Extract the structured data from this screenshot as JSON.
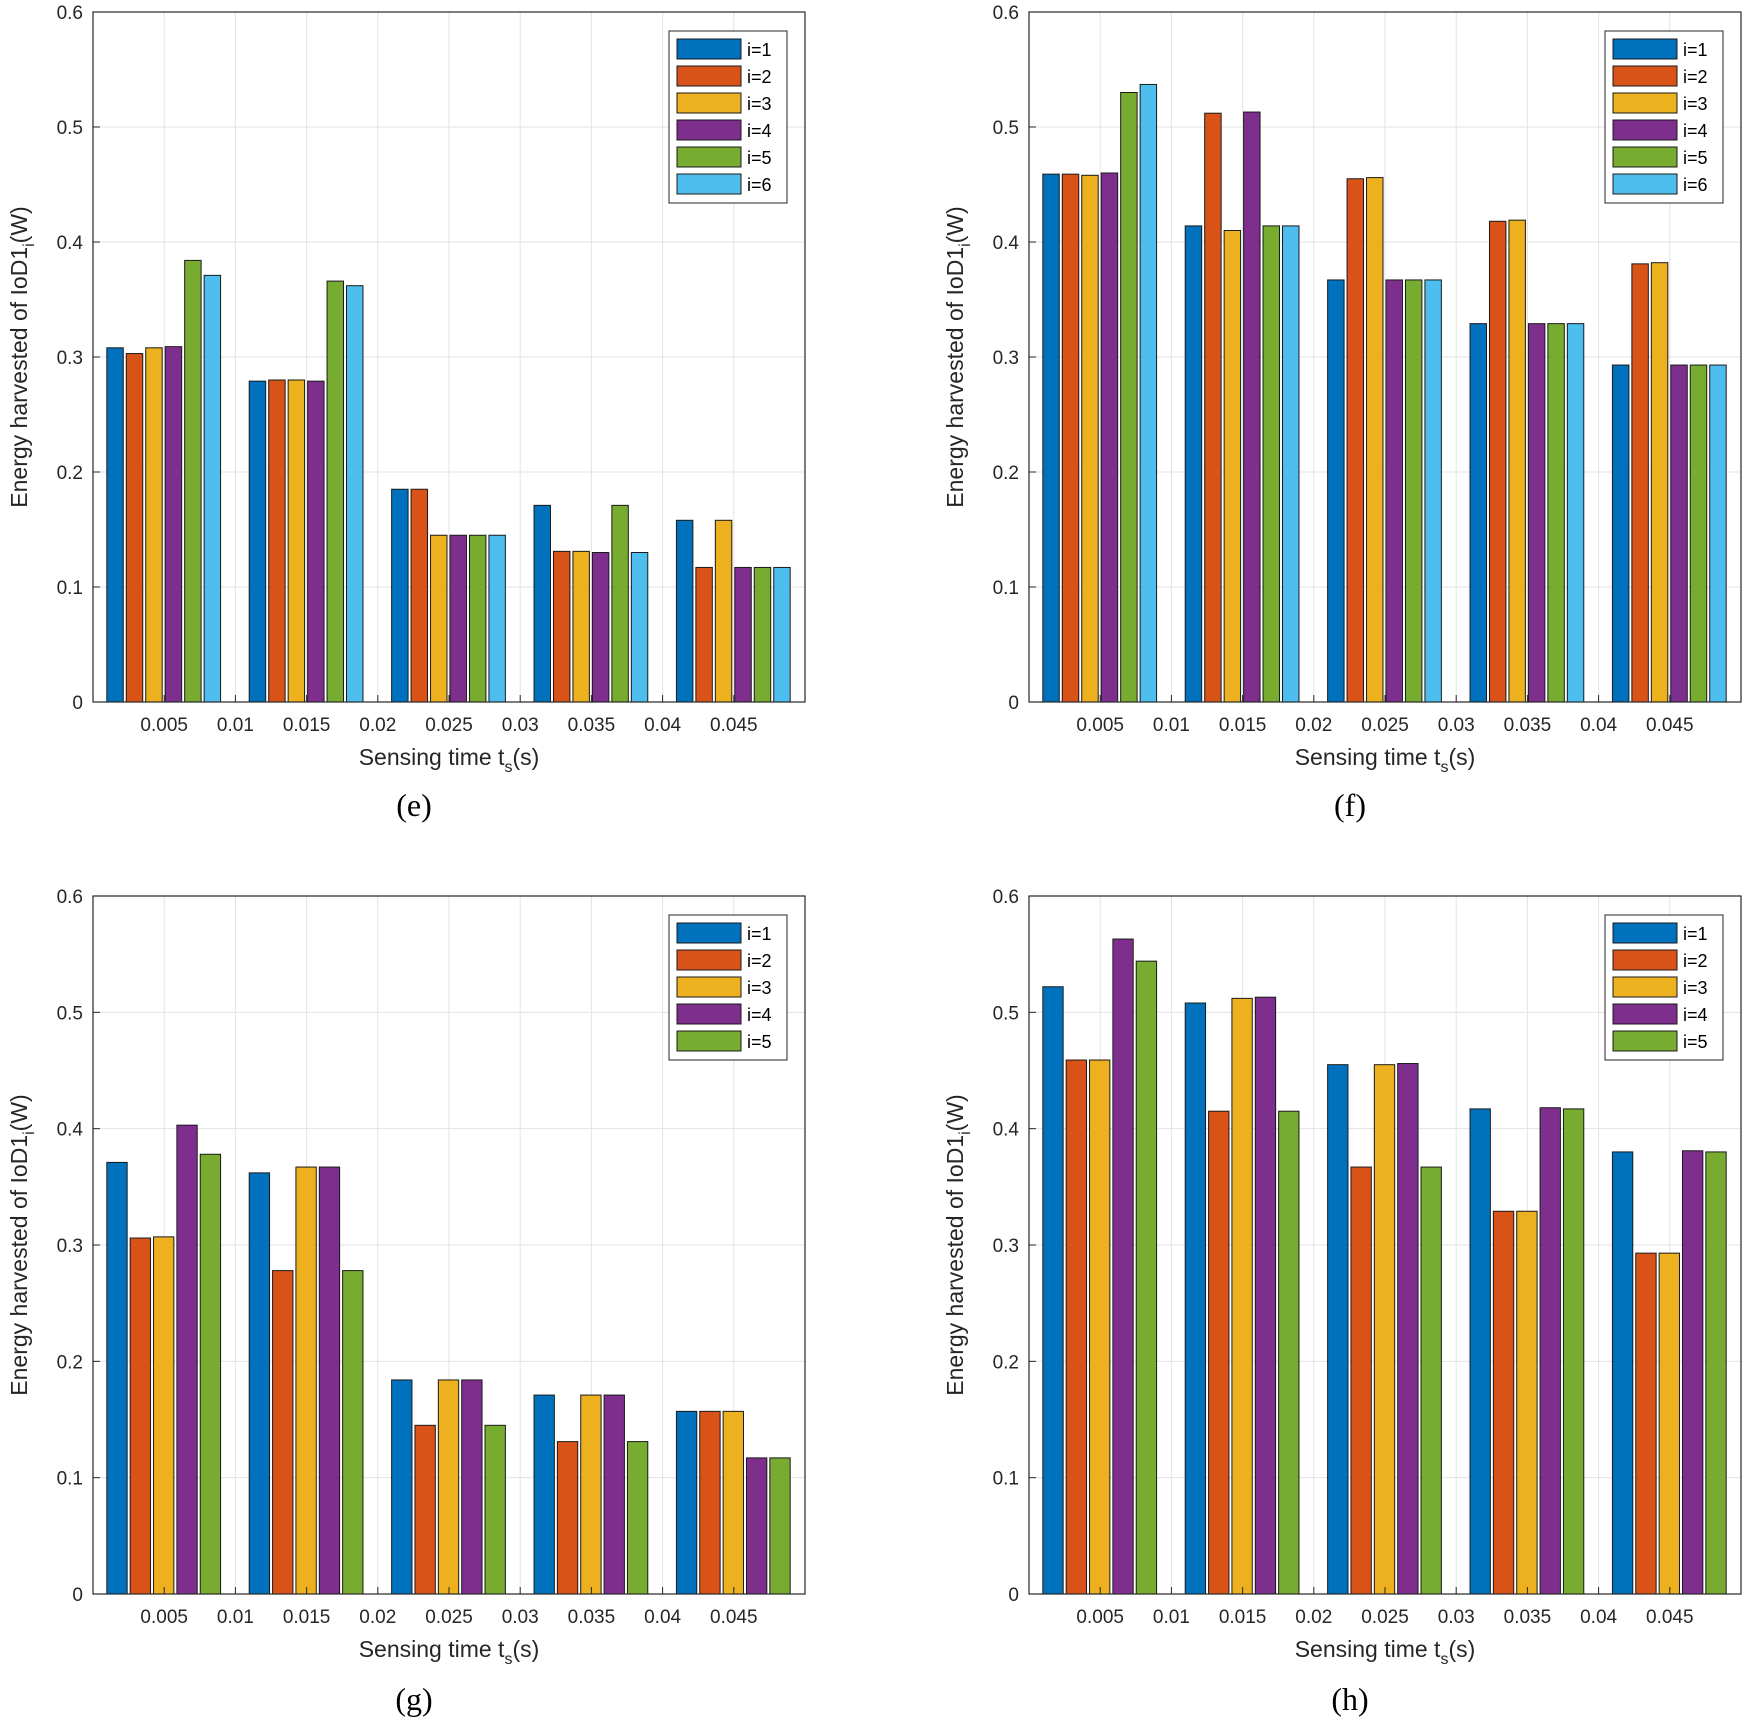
{
  "colors": [
    "#0072BD",
    "#D95319",
    "#EDB120",
    "#7E2F8E",
    "#77AC30",
    "#4DBEEE"
  ],
  "chart_data": [
    {
      "type": "bar",
      "panel_label": "(e)",
      "ylabel_main": "Energy harvested of IoD1",
      "ylabel_sub": "i",
      "ylabel_end": "(W)",
      "xlabel_main": "Sensing time t",
      "xlabel_sub": "s",
      "xlabel_end": "(s)",
      "ylim": [
        0,
        0.6
      ],
      "xlim": [
        0,
        0.05
      ],
      "yticks": [
        "0",
        "0.1",
        "0.2",
        "0.3",
        "0.4",
        "0.5",
        "0.6"
      ],
      "xticks": [
        "0.005",
        "0.01",
        "0.015",
        "0.02",
        "0.025",
        "0.03",
        "0.035",
        "0.04",
        "0.045"
      ],
      "categories": [
        0.005,
        0.015,
        0.025,
        0.035,
        0.045
      ],
      "legend_position": "top-right",
      "grid": true,
      "series": [
        {
          "name": "i=1",
          "values": [
            0.308,
            0.279,
            0.185,
            0.171,
            0.158
          ]
        },
        {
          "name": "i=2",
          "values": [
            0.303,
            0.28,
            0.185,
            0.131,
            0.117
          ]
        },
        {
          "name": "i=3",
          "values": [
            0.308,
            0.28,
            0.145,
            0.131,
            0.158
          ]
        },
        {
          "name": "i=4",
          "values": [
            0.309,
            0.279,
            0.145,
            0.13,
            0.117
          ]
        },
        {
          "name": "i=5",
          "values": [
            0.384,
            0.366,
            0.145,
            0.171,
            0.117
          ]
        },
        {
          "name": "i=6",
          "values": [
            0.371,
            0.362,
            0.145,
            0.13,
            0.117
          ]
        }
      ]
    },
    {
      "type": "bar",
      "panel_label": "(f)",
      "ylabel_main": "Energy harvested of IoD1",
      "ylabel_sub": "i",
      "ylabel_end": "(W)",
      "xlabel_main": "Sensing time t",
      "xlabel_sub": "s",
      "xlabel_end": "(s)",
      "ylim": [
        0,
        0.6
      ],
      "xlim": [
        0,
        0.05
      ],
      "yticks": [
        "0",
        "0.1",
        "0.2",
        "0.3",
        "0.4",
        "0.5",
        "0.6"
      ],
      "xticks": [
        "0.005",
        "0.01",
        "0.015",
        "0.02",
        "0.025",
        "0.03",
        "0.035",
        "0.04",
        "0.045"
      ],
      "categories": [
        0.005,
        0.015,
        0.025,
        0.035,
        0.045
      ],
      "legend_position": "top-right",
      "grid": true,
      "series": [
        {
          "name": "i=1",
          "values": [
            0.459,
            0.414,
            0.367,
            0.329,
            0.293
          ]
        },
        {
          "name": "i=2",
          "values": [
            0.459,
            0.512,
            0.455,
            0.418,
            0.381
          ]
        },
        {
          "name": "i=3",
          "values": [
            0.458,
            0.41,
            0.456,
            0.419,
            0.382
          ]
        },
        {
          "name": "i=4",
          "values": [
            0.46,
            0.513,
            0.367,
            0.329,
            0.293
          ]
        },
        {
          "name": "i=5",
          "values": [
            0.53,
            0.414,
            0.367,
            0.329,
            0.293
          ]
        },
        {
          "name": "i=6",
          "values": [
            0.537,
            0.414,
            0.367,
            0.329,
            0.293
          ]
        }
      ]
    },
    {
      "type": "bar",
      "panel_label": "(g)",
      "ylabel_main": "Energy harvested of IoD1",
      "ylabel_sub": "i",
      "ylabel_end": "(W)",
      "xlabel_main": "Sensing time t",
      "xlabel_sub": "s",
      "xlabel_end": "(s)",
      "ylim": [
        0,
        0.6
      ],
      "xlim": [
        0,
        0.05
      ],
      "yticks": [
        "0",
        "0.1",
        "0.2",
        "0.3",
        "0.4",
        "0.5",
        "0.6"
      ],
      "xticks": [
        "0.005",
        "0.01",
        "0.015",
        "0.02",
        "0.025",
        "0.03",
        "0.035",
        "0.04",
        "0.045"
      ],
      "categories": [
        0.005,
        0.015,
        0.025,
        0.035,
        0.045
      ],
      "legend_position": "top-right",
      "grid": true,
      "series": [
        {
          "name": "i=1",
          "values": [
            0.371,
            0.362,
            0.184,
            0.171,
            0.157
          ]
        },
        {
          "name": "i=2",
          "values": [
            0.306,
            0.278,
            0.145,
            0.131,
            0.157
          ]
        },
        {
          "name": "i=3",
          "values": [
            0.307,
            0.367,
            0.184,
            0.171,
            0.157
          ]
        },
        {
          "name": "i=4",
          "values": [
            0.403,
            0.367,
            0.184,
            0.171,
            0.117
          ]
        },
        {
          "name": "i=5",
          "values": [
            0.378,
            0.278,
            0.145,
            0.131,
            0.117
          ]
        }
      ]
    },
    {
      "type": "bar",
      "panel_label": "(h)",
      "ylabel_main": "Energy harvested of IoD1",
      "ylabel_sub": "i",
      "ylabel_end": "(W)",
      "xlabel_main": "Sensing time t",
      "xlabel_sub": "s",
      "xlabel_end": "(s)",
      "ylim": [
        0,
        0.6
      ],
      "xlim": [
        0,
        0.05
      ],
      "yticks": [
        "0",
        "0.1",
        "0.2",
        "0.3",
        "0.4",
        "0.5",
        "0.6"
      ],
      "xticks": [
        "0.005",
        "0.01",
        "0.015",
        "0.02",
        "0.025",
        "0.03",
        "0.035",
        "0.04",
        "0.045"
      ],
      "categories": [
        0.005,
        0.015,
        0.025,
        0.035,
        0.045
      ],
      "legend_position": "top-right",
      "grid": true,
      "series": [
        {
          "name": "i=1",
          "values": [
            0.522,
            0.508,
            0.455,
            0.417,
            0.38
          ]
        },
        {
          "name": "i=2",
          "values": [
            0.459,
            0.415,
            0.367,
            0.329,
            0.293
          ]
        },
        {
          "name": "i=3",
          "values": [
            0.459,
            0.512,
            0.455,
            0.329,
            0.293
          ]
        },
        {
          "name": "i=4",
          "values": [
            0.563,
            0.513,
            0.456,
            0.418,
            0.381
          ]
        },
        {
          "name": "i=5",
          "values": [
            0.544,
            0.415,
            0.367,
            0.417,
            0.38
          ]
        }
      ]
    }
  ]
}
